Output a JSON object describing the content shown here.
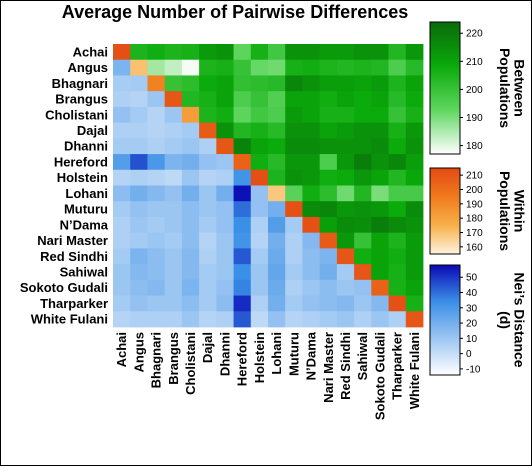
{
  "chart_data": {
    "type": "heatmap",
    "title": "Average Number of Pairwise Differences",
    "populations": [
      "Achai",
      "Angus",
      "Bhagnari",
      "Brangus",
      "Cholistani",
      "Dajal",
      "Dhanni",
      "Hereford",
      "Holstein",
      "Lohani",
      "Muturu",
      "N’Dama",
      "Nari Master",
      "Red Sindhi",
      "Sahiwal",
      "Sokoto Gudali",
      "Tharparker",
      "White Fulani"
    ],
    "upper_triangle_metric": "Between Populations",
    "diagonal_metric": "Within Populations",
    "lower_triangle_metric": "Nei’s Distance (d)",
    "colorbars": [
      {
        "label": "Between Populations",
        "range": [
          177,
          224
        ],
        "ticks": [
          220,
          210,
          200,
          190,
          180
        ],
        "colors": [
          "#ffffff",
          "#5fd65f",
          "#0aaa0a",
          "#0a6a0a"
        ]
      },
      {
        "label": "Within Populations",
        "range": [
          155,
          215
        ],
        "ticks": [
          210,
          200,
          190,
          180,
          170,
          160
        ],
        "colors": [
          "#fff3e0",
          "#f7b04a",
          "#f07a1c",
          "#e34a14"
        ]
      },
      {
        "label": "Nei’s Distance (d)",
        "range": [
          -14,
          58
        ],
        "ticks": [
          50,
          40,
          30,
          20,
          10,
          0,
          -10
        ],
        "colors": [
          "#ffffff",
          "#9cc6f2",
          "#3a8fe6",
          "#0a0ab4"
        ]
      }
    ],
    "between": [
      [
        null,
        205,
        207,
        205,
        206,
        212,
        214,
        193,
        206,
        198,
        214,
        214,
        212,
        212,
        214,
        214,
        204,
        213
      ],
      [
        null,
        null,
        186,
        183,
        178,
        205,
        206,
        200,
        192,
        191,
        206,
        207,
        205,
        204,
        205,
        204,
        196,
        203
      ],
      [
        null,
        null,
        null,
        200,
        202,
        208,
        210,
        201,
        202,
        203,
        217,
        214,
        211,
        211,
        210,
        212,
        205,
        210
      ],
      [
        null,
        null,
        null,
        null,
        204,
        206,
        210,
        196,
        200,
        195,
        210,
        210,
        207,
        210,
        208,
        210,
        203,
        208
      ],
      [
        null,
        null,
        null,
        null,
        null,
        205,
        207,
        193,
        198,
        196,
        212,
        210,
        206,
        206,
        208,
        208,
        200,
        206
      ],
      [
        null,
        null,
        null,
        null,
        null,
        null,
        214,
        204,
        206,
        203,
        214,
        214,
        210,
        212,
        214,
        214,
        206,
        213
      ],
      [
        null,
        null,
        null,
        null,
        null,
        null,
        null,
        218,
        210,
        208,
        216,
        216,
        214,
        214,
        214,
        216,
        208,
        214
      ],
      [
        null,
        null,
        null,
        null,
        null,
        null,
        null,
        null,
        207,
        203,
        213,
        213,
        196,
        213,
        219,
        214,
        217,
        211
      ],
      [
        null,
        null,
        null,
        null,
        null,
        null,
        null,
        null,
        null,
        205,
        214,
        213,
        207,
        208,
        213,
        210,
        204,
        209
      ],
      [
        null,
        null,
        null,
        null,
        null,
        null,
        null,
        null,
        null,
        null,
        194,
        207,
        202,
        191,
        204,
        190,
        197,
        197
      ],
      [
        null,
        null,
        null,
        null,
        null,
        null,
        null,
        null,
        null,
        null,
        null,
        216,
        217,
        213,
        214,
        213,
        208,
        216
      ],
      [
        null,
        null,
        null,
        null,
        null,
        null,
        null,
        null,
        null,
        null,
        null,
        null,
        211,
        216,
        215,
        219,
        216,
        214
      ],
      [
        null,
        null,
        null,
        null,
        null,
        null,
        null,
        null,
        null,
        null,
        null,
        null,
        null,
        213,
        200,
        210,
        205,
        212
      ],
      [
        null,
        null,
        null,
        null,
        null,
        null,
        null,
        null,
        null,
        null,
        null,
        null,
        null,
        null,
        207,
        210,
        207,
        212
      ],
      [
        null,
        null,
        null,
        null,
        null,
        null,
        null,
        null,
        null,
        null,
        null,
        null,
        null,
        null,
        null,
        210,
        206,
        212
      ],
      [
        null,
        null,
        null,
        null,
        null,
        null,
        null,
        null,
        null,
        null,
        null,
        null,
        null,
        null,
        null,
        null,
        206,
        210
      ],
      [
        null,
        null,
        null,
        null,
        null,
        null,
        null,
        null,
        null,
        null,
        null,
        null,
        null,
        null,
        null,
        null,
        null,
        206
      ]
    ],
    "within": [
      213,
      170,
      192,
      210,
      182,
      208,
      210,
      205,
      213,
      168,
      212,
      212,
      208,
      210,
      210,
      205,
      212,
      210
    ],
    "nei": [
      [],
      [
        18
      ],
      [
        7,
        8
      ],
      [
        6,
        4,
        10
      ],
      [
        12,
        8,
        4,
        10
      ],
      [
        6,
        6,
        4,
        6,
        8
      ],
      [
        8,
        8,
        6,
        8,
        10,
        6
      ],
      [
        28,
        45,
        30,
        18,
        20,
        12,
        10
      ],
      [
        4,
        6,
        4,
        2,
        10,
        4,
        6,
        32
      ],
      [
        14,
        20,
        16,
        12,
        20,
        10,
        20,
        57,
        12
      ],
      [
        8,
        12,
        10,
        10,
        14,
        10,
        12,
        40,
        12,
        20
      ],
      [
        6,
        10,
        8,
        10,
        14,
        8,
        12,
        34,
        6,
        28,
        8
      ],
      [
        6,
        8,
        10,
        8,
        14,
        4,
        10,
        32,
        4,
        20,
        6,
        16
      ],
      [
        8,
        18,
        14,
        10,
        16,
        6,
        10,
        44,
        8,
        22,
        6,
        14,
        18
      ],
      [
        10,
        16,
        14,
        10,
        16,
        8,
        10,
        34,
        10,
        24,
        8,
        14,
        20,
        8
      ],
      [
        10,
        14,
        16,
        10,
        18,
        8,
        12,
        36,
        10,
        22,
        6,
        10,
        14,
        10,
        12
      ],
      [
        8,
        12,
        10,
        10,
        14,
        8,
        14,
        52,
        6,
        20,
        8,
        12,
        14,
        16,
        10,
        16
      ],
      [
        4,
        6,
        6,
        6,
        10,
        4,
        6,
        44,
        2,
        12,
        4,
        6,
        8,
        10,
        6,
        10,
        6
      ]
    ]
  }
}
